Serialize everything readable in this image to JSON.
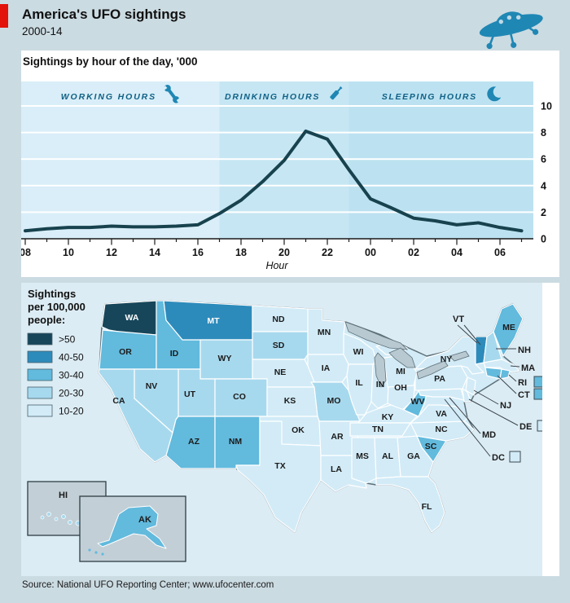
{
  "header": {
    "title": "America's UFO sightings",
    "subtitle": "2000-14"
  },
  "chart": {
    "label": "Sightings by hour of the day, '000",
    "xlabel": "Hour"
  },
  "chart_data": [
    {
      "type": "line",
      "title": "Sightings by hour of the day, '000",
      "x_hours": [
        "08",
        "09",
        "10",
        "11",
        "12",
        "13",
        "14",
        "15",
        "16",
        "17",
        "18",
        "19",
        "20",
        "21",
        "22",
        "23",
        "00",
        "01",
        "02",
        "03",
        "04",
        "05",
        "06",
        "07"
      ],
      "values": [
        0.6,
        0.75,
        0.85,
        0.85,
        0.95,
        0.9,
        0.9,
        0.95,
        1.05,
        1.9,
        2.9,
        4.3,
        5.9,
        8.1,
        7.5,
        5.2,
        3.0,
        2.3,
        1.55,
        1.35,
        1.05,
        1.2,
        0.85,
        0.6
      ],
      "xlabel": "Hour",
      "ylim": [
        0,
        10
      ],
      "yticks": [
        "0",
        "2",
        "4",
        "6",
        "8",
        "10"
      ],
      "ytick_values": [
        0,
        2,
        4,
        6,
        8,
        10
      ],
      "xtick_labels": [
        "08",
        "10",
        "12",
        "14",
        "16",
        "18",
        "20",
        "22",
        "00",
        "02",
        "04",
        "06"
      ],
      "grid": "horizontal white gridlines on blue bands",
      "legend_position": "none",
      "zones": [
        {
          "label": "WORKING HOURS",
          "icon": "wrench-icon",
          "from": "08",
          "to": "17"
        },
        {
          "label": "DRINKING HOURS",
          "icon": "bottle-icon",
          "from": "17",
          "to": "23"
        },
        {
          "label": "SLEEPING HOURS",
          "icon": "moon-icon",
          "from": "23",
          "to": "07"
        }
      ]
    },
    {
      "type": "choropleth",
      "title": "Sightings per 100,000 people",
      "legend": [
        {
          "label": ">50",
          "bucket": "gt50"
        },
        {
          "label": "40-50",
          "bucket": "b40"
        },
        {
          "label": "30-40",
          "bucket": "b30"
        },
        {
          "label": "20-30",
          "bucket": "b20"
        },
        {
          "label": "10-20",
          "bucket": "b10"
        }
      ],
      "states": {
        "WA": "gt50",
        "MT": "b40",
        "VT": "b40",
        "OR": "b30",
        "ID": "b30",
        "AZ": "b30",
        "NM": "b30",
        "AK": "b30",
        "ME": "b30",
        "WV": "b30",
        "SC": "b30",
        "RI": "b30",
        "CT": "b30",
        "CA": "b20",
        "NV": "b20",
        "UT": "b20",
        "WY": "b20",
        "CO": "b20",
        "SD": "b20",
        "MO": "b20",
        "NH": "b20",
        "HI": "b20",
        "ND": "b10",
        "MN": "b10",
        "WI": "b10",
        "MI": "b10",
        "IA": "b10",
        "NE": "b10",
        "KS": "b10",
        "OK": "b10",
        "TX": "b10",
        "AR": "b10",
        "LA": "b10",
        "MS": "b10",
        "AL": "b10",
        "GA": "b10",
        "FL": "b10",
        "TN": "b10",
        "KY": "b10",
        "NC": "b10",
        "VA": "b10",
        "IL": "b10",
        "IN": "b10",
        "OH": "b10",
        "PA": "b10",
        "NY": "b10",
        "NJ": "b10",
        "DE": "b10",
        "MD": "b10",
        "MA": "b10",
        "DC": "b10"
      }
    }
  ],
  "map": {
    "legend_title_lines": [
      "Sightings",
      "per 100,000",
      "people:"
    ],
    "callouts": [
      {
        "id": "VT",
        "box": false
      },
      {
        "id": "NH",
        "box": false
      },
      {
        "id": "MA",
        "box": false
      },
      {
        "id": "RI",
        "box": true
      },
      {
        "id": "CT",
        "box": true
      },
      {
        "id": "NJ",
        "box": false
      },
      {
        "id": "DE",
        "box": true
      },
      {
        "id": "MD",
        "box": false
      },
      {
        "id": "DC",
        "box": true
      }
    ]
  },
  "footer": {
    "source": "Source: National UFO Reporting Center; www.ufocenter.com"
  },
  "colors": {
    "accent_red": "#e3120b",
    "page_bg": "#cbdbe2",
    "panel": "#ffffff",
    "line": "#17424e",
    "icon_blue": "#1f87b4",
    "zone_text": "#0f6186",
    "axis_text": "#111111",
    "bands": {
      "working": "#d9eef8",
      "drinking": "#c6e6f3",
      "sleeping": "#bce2f1"
    },
    "ocean": "#dcecf4",
    "lake": "#b9c9d1",
    "inset_bg": "#c2cfd6",
    "border_dark": "#5d7078",
    "buckets": {
      "gt50": "#17465a",
      "b40": "#2d8bbb",
      "b30": "#62badd",
      "b20": "#a7d9ee",
      "b10": "#d2ebf7"
    }
  }
}
